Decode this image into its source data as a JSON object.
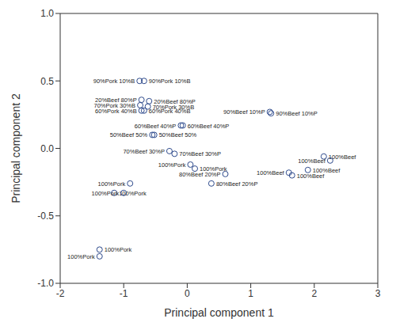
{
  "chart_data": {
    "type": "scatter",
    "x_label": "Principal component 1",
    "y_label": "Principal component 2",
    "xlim": [
      -2,
      3
    ],
    "ylim": [
      -1,
      1
    ],
    "xticks": [
      -2,
      -1,
      0,
      1,
      2,
      3
    ],
    "yticks": [
      {
        "value": -1,
        "label": "-1.0"
      },
      -0.5,
      {
        "value": 0,
        "label": "0.0"
      },
      0.5,
      {
        "value": 1,
        "label": "1.0"
      }
    ],
    "color": "#2e4a8c",
    "marker": "circle_open",
    "grid": false,
    "x": [
      -0.75,
      -0.68,
      -0.72,
      -0.6,
      -0.74,
      -0.62,
      -0.72,
      -0.68,
      -0.1,
      -0.07,
      -0.55,
      -0.52,
      -0.28,
      -0.2,
      1.3,
      1.32,
      0.05,
      0.12,
      0.6,
      0.38,
      -0.9,
      -1.15,
      -1.0,
      -1.38,
      -1.38,
      2.15,
      2.25,
      1.9,
      1.6,
      1.65
    ],
    "y": [
      0.5,
      0.5,
      0.36,
      0.35,
      0.32,
      0.31,
      0.28,
      0.28,
      0.17,
      0.17,
      0.1,
      0.1,
      -0.02,
      -0.04,
      0.27,
      0.26,
      -0.12,
      -0.15,
      -0.19,
      -0.26,
      -0.26,
      -0.33,
      -0.33,
      -0.75,
      -0.8,
      -0.06,
      -0.09,
      -0.16,
      -0.18,
      -0.2
    ],
    "labels": [
      "90%Pork 10%B",
      "90%Pork 10%B",
      "20%Beef 80%P",
      "20%Beef 80%P",
      "70%Pork 30%B",
      "70%Pork 30%B",
      "60%Pork 40%B",
      "60%Pork 40%B",
      "60%Beef 40%P",
      "60%Beef 40%P",
      "50%Beef 50%",
      "50%Beef 50%",
      "70%Beef 30%P",
      "70%Beef 30%P",
      "90%Beef 10%P",
      "90%Beef 10%P",
      "100%Pork",
      "100%Pork",
      "80%Beef 20%P",
      "80%Beef 20%P",
      "100%Pork",
      "100%Pork",
      "100%Pork",
      "100%Pork",
      "100%Pork",
      "100%Beef",
      "100%Beef",
      "100%Beef",
      "100%Beef",
      "100%Beef"
    ]
  }
}
